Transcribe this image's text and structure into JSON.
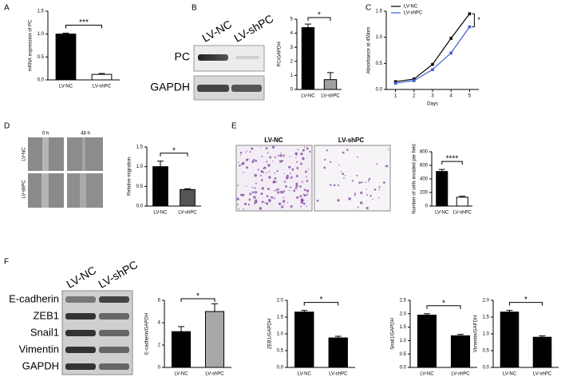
{
  "chart_data": [
    {
      "type": "bar",
      "ylabel": "mRNA expression of PC",
      "categories": [
        "LV-NC",
        "LV-shPC"
      ],
      "colors": [
        "#000000",
        "#ffffff"
      ],
      "values": [
        1.0,
        0.12
      ],
      "errors": [
        0.02,
        0.02
      ],
      "ylim": [
        0,
        1.5
      ],
      "yticks": [
        {
          "value": 0,
          "label": "0.0"
        },
        {
          "value": 0.5,
          "label": "0.5"
        },
        {
          "value": 1,
          "label": "1.0"
        },
        {
          "value": 1.5,
          "label": "1.5"
        }
      ],
      "annotation": "***"
    },
    {
      "type": "bar",
      "ylabel": "PC/GAPDH",
      "categories": [
        "LV-NC",
        "LV-shPC"
      ],
      "colors": [
        "#000000",
        "#a0a0a0"
      ],
      "values": [
        4.4,
        0.7
      ],
      "errors": [
        0.25,
        0.5
      ],
      "ylim": [
        0,
        5
      ],
      "yticks": [
        0,
        1,
        2,
        3,
        4,
        5
      ],
      "annotation": "*"
    },
    {
      "type": "line",
      "ylabel": "Absorbance at 450nm",
      "xlabel": "Days",
      "x": [
        1,
        2,
        3,
        4,
        5
      ],
      "series": [
        {
          "name": "LV-NC",
          "color": "#000000",
          "values": [
            0.15,
            0.2,
            0.48,
            0.98,
            1.45
          ]
        },
        {
          "name": "LV-shPC",
          "color": "#3a5fd0",
          "values": [
            0.12,
            0.17,
            0.38,
            0.7,
            1.2
          ]
        }
      ],
      "xlim": [
        0.5,
        5.5
      ],
      "xticks": [
        1,
        2,
        3,
        4,
        5
      ],
      "ylim": [
        0,
        1.5
      ],
      "yticks": [
        {
          "value": 0,
          "label": "0.0"
        },
        {
          "value": 0.5,
          "label": "0.5"
        },
        {
          "value": 1,
          "label": "1.0"
        },
        {
          "value": 1.5,
          "label": "1.5"
        }
      ],
      "legend": "upper left",
      "annotation": "*"
    },
    {
      "type": "bar",
      "ylabel": "Relative migration",
      "categories": [
        "LV-NC",
        "LV-shPC"
      ],
      "colors": [
        "#000000",
        "#555555"
      ],
      "values": [
        1.0,
        0.42
      ],
      "errors": [
        0.14,
        0.02
      ],
      "ylim": [
        0,
        1.5
      ],
      "yticks": [
        {
          "value": 0,
          "label": "0.0"
        },
        {
          "value": 0.5,
          "label": "0.5"
        },
        {
          "value": 1,
          "label": "1.0"
        },
        {
          "value": 1.5,
          "label": "1.5"
        }
      ],
      "annotation": "*"
    },
    {
      "type": "bar",
      "ylabel": "Number of cells invaded per field",
      "categories": [
        "LV-NC",
        "LV-shPC"
      ],
      "colors": [
        "#000000",
        "#ffffff"
      ],
      "values": [
        510,
        130
      ],
      "errors": [
        30,
        15
      ],
      "ylim": [
        0,
        800
      ],
      "yticks": [
        0,
        200,
        400,
        600,
        800
      ],
      "annotation": "****"
    },
    {
      "type": "bar",
      "ylabel": "E-cadherin/GAPDH",
      "categories": [
        "LV-NC",
        "LV-shPC"
      ],
      "colors": [
        "#000000",
        "#a8a8a8"
      ],
      "values": [
        3.2,
        5.0
      ],
      "errors": [
        0.45,
        0.7
      ],
      "ylim": [
        0,
        6
      ],
      "yticks": [
        0,
        2,
        4,
        6
      ],
      "annotation": "*"
    },
    {
      "type": "bar",
      "ylabel": "ZEB1/GAPDH",
      "categories": [
        "LV-NC",
        "LV-shPC"
      ],
      "colors": [
        "#000000",
        "#000000"
      ],
      "values": [
        1.65,
        0.88
      ],
      "errors": [
        0.05,
        0.05
      ],
      "ylim": [
        0,
        2
      ],
      "yticks": [
        {
          "value": 0,
          "label": "0.0"
        },
        {
          "value": 0.5,
          "label": "0.5"
        },
        {
          "value": 1,
          "label": "1.0"
        },
        {
          "value": 1.5,
          "label": "1.5"
        },
        {
          "value": 2,
          "label": "2.0"
        }
      ],
      "annotation": "*"
    },
    {
      "type": "bar",
      "ylabel": "Snail1/GAPDH",
      "categories": [
        "LV-NC",
        "LV-shPC"
      ],
      "colors": [
        "#000000",
        "#000000"
      ],
      "values": [
        1.95,
        1.18
      ],
      "errors": [
        0.05,
        0.05
      ],
      "ylim": [
        0,
        2.5
      ],
      "yticks": [
        {
          "value": 0,
          "label": "0.0"
        },
        {
          "value": 0.5,
          "label": "0.5"
        },
        {
          "value": 1,
          "label": "1.0"
        },
        {
          "value": 1.5,
          "label": "1.5"
        },
        {
          "value": 2,
          "label": "2.0"
        },
        {
          "value": 2.5,
          "label": "2.5"
        }
      ],
      "annotation": "*"
    },
    {
      "type": "bar",
      "ylabel": "Vimentin/GAPDH",
      "categories": [
        "LV-NC",
        "LV-shPC"
      ],
      "colors": [
        "#000000",
        "#000000"
      ],
      "values": [
        1.65,
        0.9
      ],
      "errors": [
        0.05,
        0.04
      ],
      "ylim": [
        0,
        2
      ],
      "yticks": [
        {
          "value": 0,
          "label": "0.0"
        },
        {
          "value": 0.5,
          "label": "0.5"
        },
        {
          "value": 1,
          "label": "1.0"
        },
        {
          "value": 1.5,
          "label": "1.5"
        },
        {
          "value": 2,
          "label": "2.0"
        }
      ],
      "annotation": "*"
    }
  ],
  "figure": {
    "panels": [
      "A",
      "B",
      "C",
      "D",
      "E",
      "F"
    ],
    "blot_b": {
      "lanes": [
        "LV-NC",
        "LV-shPC"
      ],
      "proteins": [
        "PC",
        "GAPDH"
      ]
    },
    "scratch_d": {
      "times": [
        "0 h",
        "48 h"
      ],
      "groups": [
        "LV-NC",
        "LV-shPC"
      ]
    },
    "invasion_e": {
      "groups": [
        "LV-NC",
        "LV-shPC"
      ]
    },
    "blot_f": {
      "lanes": [
        "LV-NC",
        "LV-shPC"
      ],
      "proteins": [
        "E-cadherin",
        "ZEB1",
        "Snail1",
        "Vimentin",
        "GAPDH"
      ]
    }
  }
}
